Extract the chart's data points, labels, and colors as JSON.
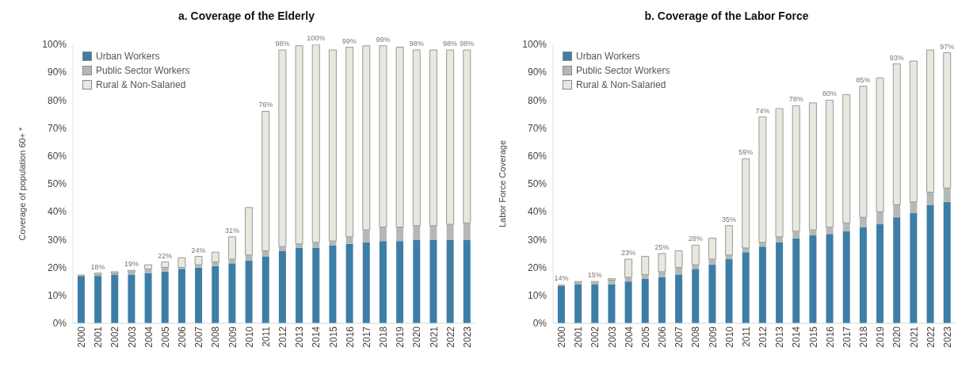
{
  "chart_data": [
    {
      "type": "bar",
      "title": "a.  Coverage of the Elderly",
      "ylabel": "Coverage of population 60+ *",
      "categories": [
        "2000",
        "2001",
        "2002",
        "2003",
        "2004",
        "2005",
        "2006",
        "2007",
        "2008",
        "2009",
        "2010",
        "2011",
        "2012",
        "2013",
        "2014",
        "2015",
        "2016",
        "2017",
        "2018",
        "2019",
        "2020",
        "2021",
        "2022",
        "2023"
      ],
      "stacked": true,
      "legend": "top left",
      "grid": false,
      "ylim": [
        0,
        100
      ],
      "yticks": [
        {
          "value": 0,
          "label": "0%"
        },
        {
          "value": 10,
          "label": "10%"
        },
        {
          "value": 20,
          "label": "20%"
        },
        {
          "value": 30,
          "label": "30%"
        },
        {
          "value": 40,
          "label": "40%"
        },
        {
          "value": 50,
          "label": "50%"
        },
        {
          "value": 60,
          "label": "60%"
        },
        {
          "value": 70,
          "label": "70%"
        },
        {
          "value": 80,
          "label": "80%"
        },
        {
          "value": 90,
          "label": "90%"
        },
        {
          "value": 100,
          "label": "100%"
        }
      ],
      "series": [
        {
          "name": "Urban Workers",
          "color": "#3d7ea6",
          "values": [
            17,
            17,
            17.5,
            17.5,
            18,
            18.5,
            19.5,
            20,
            20.5,
            21.5,
            22.5,
            24,
            26,
            27,
            27,
            28,
            28.5,
            29,
            29.5,
            29.5,
            30,
            30,
            30,
            30
          ]
        },
        {
          "name": "Public Sector Workers",
          "color": "#b4b9b6",
          "values": [
            0.5,
            0.5,
            0.5,
            1,
            1.5,
            1.5,
            0.5,
            1,
            1.5,
            1.5,
            2,
            2,
            1.5,
            1.5,
            2,
            1.5,
            2.5,
            4.5,
            5,
            5,
            5,
            5,
            5.5,
            6
          ]
        },
        {
          "name": "Rural & Non-Salaried",
          "color": "#e6e9df",
          "values": [
            0,
            0.5,
            0.5,
            0.5,
            1.5,
            2,
            3.5,
            3,
            3.5,
            8,
            17,
            50,
            70.5,
            71,
            71,
            68.5,
            68,
            66,
            65,
            64.5,
            63,
            63,
            62.5,
            62
          ]
        }
      ],
      "totals": [
        null,
        "18%",
        null,
        "19%",
        null,
        "22%",
        null,
        "24%",
        null,
        "31%",
        null,
        "76%",
        "98%",
        null,
        "100%",
        null,
        "99%",
        null,
        "99%",
        null,
        "98%",
        null,
        "98%",
        "98%"
      ]
    },
    {
      "type": "bar",
      "title": "b. Coverage of the Labor Force",
      "ylabel": "Labor Force Coverage",
      "categories": [
        "2000",
        "2001",
        "2002",
        "2003",
        "2004",
        "2005",
        "2006",
        "2007",
        "2008",
        "2009",
        "2010",
        "2011",
        "2012",
        "2013",
        "2014",
        "2015",
        "2016",
        "2017",
        "2018",
        "2019",
        "2020",
        "2021",
        "2022",
        "2023"
      ],
      "stacked": true,
      "legend": "top left",
      "grid": false,
      "ylim": [
        0,
        100
      ],
      "yticks": [
        {
          "value": 0,
          "label": "0%"
        },
        {
          "value": 10,
          "label": "10%"
        },
        {
          "value": 20,
          "label": "20%"
        },
        {
          "value": 30,
          "label": "30%"
        },
        {
          "value": 40,
          "label": "40%"
        },
        {
          "value": 50,
          "label": "50%"
        },
        {
          "value": 60,
          "label": "60%"
        },
        {
          "value": 70,
          "label": "70%"
        },
        {
          "value": 80,
          "label": "80%"
        },
        {
          "value": 90,
          "label": "90%"
        },
        {
          "value": 100,
          "label": "100%"
        }
      ],
      "series": [
        {
          "name": "Urban Workers",
          "color": "#3d7ea6",
          "values": [
            13.5,
            14,
            14,
            14,
            15,
            16,
            16.5,
            17.5,
            19.5,
            21,
            23,
            25.5,
            27.5,
            29,
            30.5,
            31.5,
            32,
            33,
            34.5,
            35.5,
            38,
            39.5,
            42.5,
            43.5
          ]
        },
        {
          "name": "Public Sector Workers",
          "color": "#b4b9b6",
          "values": [
            0.5,
            0.5,
            0.5,
            1.5,
            1.5,
            1.5,
            2,
            2.5,
            1.5,
            2,
            1.5,
            1.5,
            1.5,
            2,
            2.5,
            2,
            2.5,
            3,
            3.5,
            4.5,
            4.5,
            4,
            4.5,
            5
          ]
        },
        {
          "name": "Rural & Non-Salaried",
          "color": "#e6e9df",
          "values": [
            0,
            0.5,
            0.5,
            0.5,
            6.5,
            6.5,
            6.5,
            6,
            7,
            7.5,
            10.5,
            32,
            45,
            46,
            45,
            45.5,
            45.5,
            46,
            47,
            48,
            50.5,
            50.5,
            51,
            48.5
          ]
        }
      ],
      "totals": [
        "14%",
        null,
        "15%",
        null,
        "23%",
        null,
        "25%",
        null,
        "28%",
        null,
        "35%",
        "59%",
        "74%",
        null,
        "78%",
        null,
        "80%",
        null,
        "85%",
        null,
        "93%",
        null,
        null,
        "97%"
      ]
    }
  ]
}
